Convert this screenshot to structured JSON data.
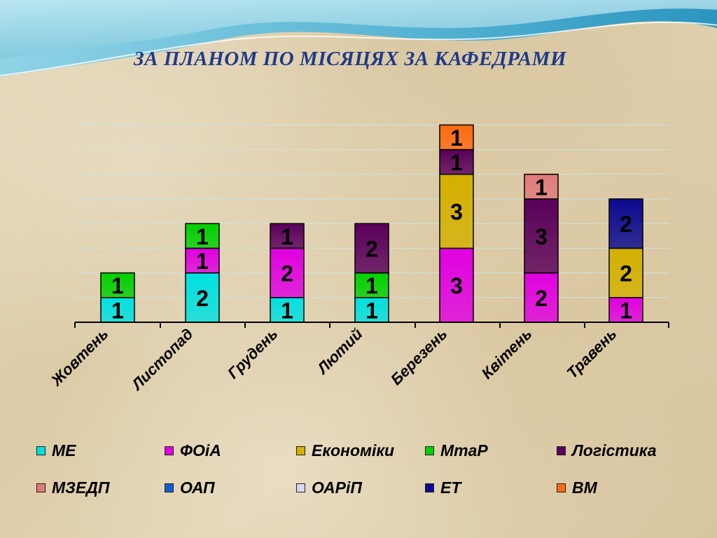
{
  "title": "ЗА ПЛАНОМ  ПО МІСЯЦЯХ ЗА КАФЕДРАМИ",
  "chart_data": {
    "type": "bar",
    "stacked": true,
    "categories": [
      "Жовтень",
      "Листопад",
      "Грудень",
      "Лютий",
      "Березень",
      "Квітень",
      "Травень"
    ],
    "ylim": [
      0,
      8
    ],
    "grid": true,
    "legend_position": "bottom",
    "series": [
      {
        "name": "МЕ",
        "color": "#00e0e0",
        "values": [
          1,
          2,
          1,
          1,
          0,
          0,
          0
        ]
      },
      {
        "name": "ФОіА",
        "color": "#e000e0",
        "values": [
          0,
          1,
          2,
          0,
          3,
          2,
          1
        ]
      },
      {
        "name": "Економіки",
        "color": "#d4b000",
        "values": [
          0,
          0,
          0,
          0,
          3,
          0,
          2
        ]
      },
      {
        "name": "МтаР",
        "color": "#00d000",
        "values": [
          1,
          1,
          0,
          1,
          0,
          0,
          0
        ]
      },
      {
        "name": "Логістика",
        "color": "#5a005a",
        "values": [
          0,
          0,
          1,
          2,
          1,
          3,
          0
        ]
      },
      {
        "name": "МЗЕДП",
        "color": "#e07a7a",
        "values": [
          0,
          0,
          0,
          0,
          0,
          1,
          0
        ]
      },
      {
        "name": "ОАП",
        "color": "#1060d0",
        "values": [
          0,
          0,
          0,
          0,
          0,
          0,
          0
        ]
      },
      {
        "name": "ОАРіП",
        "color": "#d8d8f4",
        "values": [
          0,
          0,
          0,
          0,
          0,
          0,
          0
        ]
      },
      {
        "name": "ЕТ",
        "color": "#0a0a90",
        "values": [
          0,
          0,
          0,
          0,
          0,
          0,
          2
        ]
      },
      {
        "name": "ВМ",
        "color": "#ff6a10",
        "values": [
          0,
          0,
          0,
          0,
          1,
          0,
          0
        ]
      }
    ]
  }
}
